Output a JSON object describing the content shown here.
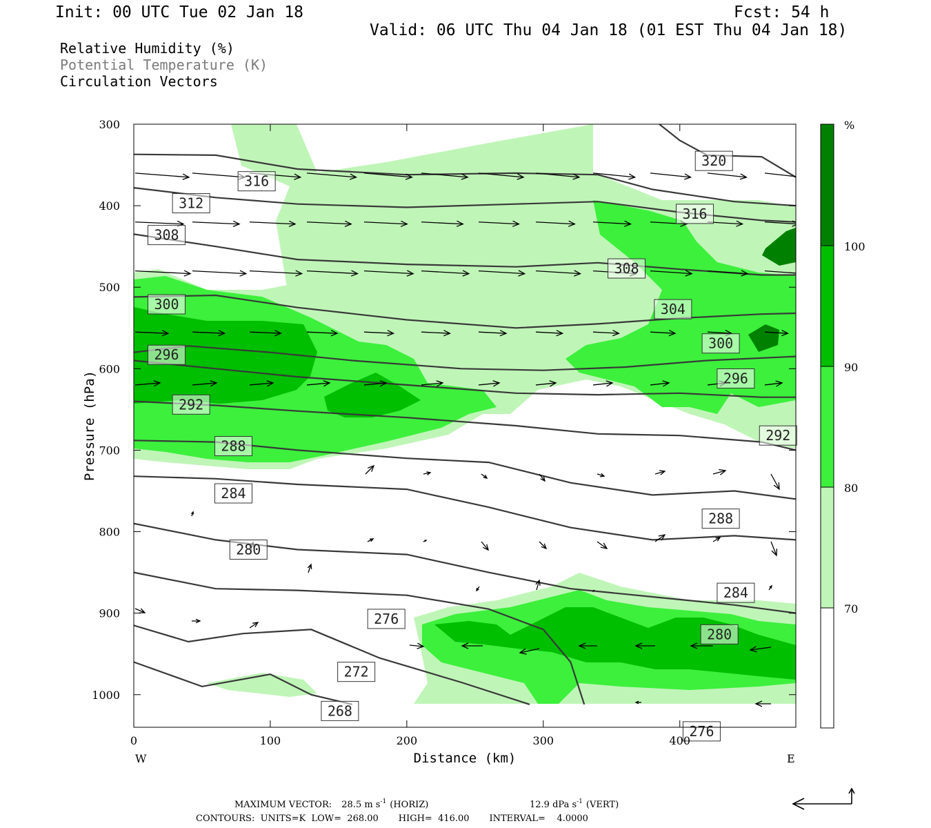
{
  "header": {
    "init": "Init: 00 UTC Tue 02 Jan 18",
    "fcst": "Fcst:   54 h",
    "valid": "Valid: 06 UTC Thu 04 Jan 18 (01 EST Thu 04 Jan 18)"
  },
  "legend": {
    "rh": "Relative Humidity (%)",
    "theta": "Potential Temperature (K)",
    "vectors": "Circulation Vectors"
  },
  "colors": {
    "rh_70_80": "#c0f5b8",
    "rh_80_90": "#3cf03c",
    "rh_90_100": "#00be00",
    "rh_100": "#008000",
    "contour": "#383838"
  },
  "colorbar": {
    "unit": "%",
    "levels": [
      "70",
      "80",
      "90",
      "100"
    ]
  },
  "footer": {
    "max_vector_label": "MAXIMUM VECTOR:",
    "horiz_value": "28.5 m s",
    "horiz_unit": "(HORIZ)",
    "vert_value": "12.9 dPa s",
    "vert_unit": "(VERT)",
    "exp": "-1",
    "contours": "CONTOURS:  UNITS=K  LOW=  268.00       HIGH=  416.00       INTERVAL=    4.0000"
  },
  "chart_data": {
    "type": "contour",
    "xlabel": "Distance (km)",
    "ylabel": "Pressure (hPa)",
    "x_ticks": [
      "0",
      "100",
      "200",
      "300",
      "400"
    ],
    "y_ticks": [
      "300",
      "400",
      "500",
      "600",
      "700",
      "800",
      "900",
      "1000"
    ],
    "x_end_labels": {
      "left": "W",
      "right": "E"
    },
    "xlim": [
      0,
      485
    ],
    "ylim": [
      1040,
      300
    ],
    "theta_contours": [
      {
        "value": 320,
        "label": "320",
        "label_at": [
          425,
          345
        ],
        "points": [
          [
            385,
            300
          ],
          [
            400,
            320
          ],
          [
            420,
            338
          ],
          [
            460,
            340
          ],
          [
            485,
            365
          ]
        ]
      },
      {
        "value": 316,
        "label": "316",
        "label_at": [
          90,
          370
        ],
        "points": [
          [
            0,
            337
          ],
          [
            60,
            338
          ],
          [
            120,
            355
          ],
          [
            200,
            362
          ],
          [
            280,
            360
          ],
          [
            340,
            362
          ],
          [
            380,
            380
          ],
          [
            440,
            395
          ],
          [
            485,
            400
          ]
        ]
      },
      {
        "value": 312,
        "label": "312",
        "label_at": [
          42,
          397
        ],
        "points": [
          [
            0,
            378
          ],
          [
            60,
            390
          ],
          [
            120,
            398
          ],
          [
            200,
            402
          ],
          [
            280,
            398
          ],
          [
            340,
            395
          ],
          [
            400,
            408
          ],
          [
            460,
            418
          ],
          [
            485,
            420
          ]
        ]
      },
      {
        "value": 316,
        "label": "316",
        "label_at": [
          411,
          410
        ],
        "points": [
          [
            485,
            420
          ]
        ]
      },
      {
        "value": 308,
        "label": "308",
        "label_at": [
          24,
          436
        ],
        "points": [
          [
            0,
            435
          ],
          [
            60,
            450
          ],
          [
            120,
            466
          ],
          [
            200,
            472
          ],
          [
            280,
            475
          ],
          [
            340,
            470
          ],
          [
            400,
            478
          ],
          [
            460,
            485
          ],
          [
            485,
            485
          ]
        ]
      },
      {
        "value": 308,
        "label": "308",
        "label_at": [
          361,
          477
        ],
        "points": [
          [
            0,
            470
          ]
        ]
      },
      {
        "value": 304,
        "label": "304",
        "label_at": [
          395,
          527
        ],
        "points": [
          [
            0,
            512
          ],
          [
            60,
            510
          ],
          [
            120,
            525
          ],
          [
            200,
            540
          ],
          [
            280,
            550
          ],
          [
            340,
            545
          ],
          [
            400,
            538
          ],
          [
            460,
            533
          ],
          [
            485,
            532
          ]
        ]
      },
      {
        "value": 300,
        "label": "300",
        "label_at": [
          24,
          521
        ],
        "points": [
          [
            0,
            580
          ],
          [
            40,
            572
          ],
          [
            100,
            580
          ],
          [
            160,
            590
          ],
          [
            240,
            600
          ],
          [
            300,
            602
          ],
          [
            360,
            598
          ],
          [
            420,
            590
          ],
          [
            485,
            585
          ]
        ]
      },
      {
        "value": 300,
        "label": "300",
        "label_at": [
          430,
          569
        ],
        "points": [
          [
            485,
            585
          ]
        ]
      },
      {
        "value": 296,
        "label": "296",
        "label_at": [
          24,
          583
        ],
        "points": [
          [
            0,
            590
          ],
          [
            60,
            600
          ],
          [
            120,
            610
          ],
          [
            200,
            620
          ],
          [
            280,
            630
          ],
          [
            340,
            632
          ],
          [
            400,
            630
          ],
          [
            460,
            635
          ],
          [
            485,
            635
          ]
        ]
      },
      {
        "value": 296,
        "label": "296",
        "label_at": [
          441,
          612
        ],
        "points": [
          [
            485,
            618
          ]
        ]
      },
      {
        "value": 292,
        "label": "292",
        "label_at": [
          42,
          644
        ],
        "points": [
          [
            0,
            640
          ],
          [
            60,
            645
          ],
          [
            120,
            652
          ],
          [
            200,
            660
          ],
          [
            280,
            670
          ],
          [
            340,
            680
          ],
          [
            400,
            682
          ],
          [
            460,
            690
          ],
          [
            485,
            700
          ]
        ]
      },
      {
        "value": 292,
        "label": "292",
        "label_at": [
          472,
          682
        ],
        "points": [
          [
            485,
            700
          ]
        ]
      },
      {
        "value": 288,
        "label": "288",
        "label_at": [
          73,
          695
        ],
        "points": [
          [
            0,
            688
          ],
          [
            60,
            690
          ],
          [
            120,
            700
          ],
          [
            200,
            710
          ],
          [
            260,
            715
          ],
          [
            320,
            740
          ],
          [
            380,
            755
          ],
          [
            440,
            750
          ],
          [
            485,
            760
          ]
        ]
      },
      {
        "value": 288,
        "label": "288",
        "label_at": [
          430,
          784
        ],
        "points": [
          [
            485,
            790
          ]
        ]
      },
      {
        "value": 284,
        "label": "284",
        "label_at": [
          73,
          753
        ],
        "points": [
          [
            0,
            732
          ],
          [
            60,
            735
          ],
          [
            120,
            742
          ],
          [
            200,
            748
          ],
          [
            260,
            770
          ],
          [
            320,
            795
          ],
          [
            380,
            810
          ],
          [
            440,
            805
          ],
          [
            485,
            810
          ]
        ]
      },
      {
        "value": 284,
        "label": "284",
        "label_at": [
          441,
          875
        ],
        "points": [
          [
            485,
            860
          ]
        ]
      },
      {
        "value": 280,
        "label": "280",
        "label_at": [
          84,
          822
        ],
        "points": [
          [
            0,
            790
          ],
          [
            60,
            810
          ],
          [
            120,
            822
          ],
          [
            200,
            828
          ],
          [
            260,
            850
          ],
          [
            320,
            870
          ],
          [
            380,
            880
          ],
          [
            440,
            890
          ],
          [
            485,
            900
          ]
        ]
      },
      {
        "value": 280,
        "label": "280",
        "label_at": [
          429,
          926
        ],
        "points": [
          [
            485,
            910
          ]
        ]
      },
      {
        "value": 276,
        "label": "276",
        "label_at": [
          185,
          907
        ],
        "points": [
          [
            0,
            850
          ],
          [
            60,
            870
          ],
          [
            120,
            872
          ],
          [
            200,
            878
          ],
          [
            260,
            895
          ],
          [
            300,
            920
          ],
          [
            320,
            960
          ],
          [
            330,
            1012
          ]
        ]
      },
      {
        "value": 276,
        "label": "276",
        "label_at": [
          416,
          1045
        ],
        "points": [
          [
            400,
            1012
          ]
        ]
      },
      {
        "value": 272,
        "label": "272",
        "label_at": [
          163,
          972
        ],
        "points": [
          [
            0,
            915
          ],
          [
            40,
            935
          ],
          [
            80,
            925
          ],
          [
            130,
            920
          ],
          [
            180,
            955
          ],
          [
            240,
            985
          ],
          [
            290,
            1012
          ]
        ]
      },
      {
        "value": 268,
        "label": "268",
        "label_at": [
          151,
          1020
        ],
        "points": [
          [
            0,
            960
          ],
          [
            50,
            990
          ],
          [
            100,
            975
          ],
          [
            130,
            1000
          ],
          [
            160,
            1012
          ]
        ]
      }
    ],
    "max_vector": {
      "horiz": 28.5,
      "vert": 12.9
    }
  }
}
